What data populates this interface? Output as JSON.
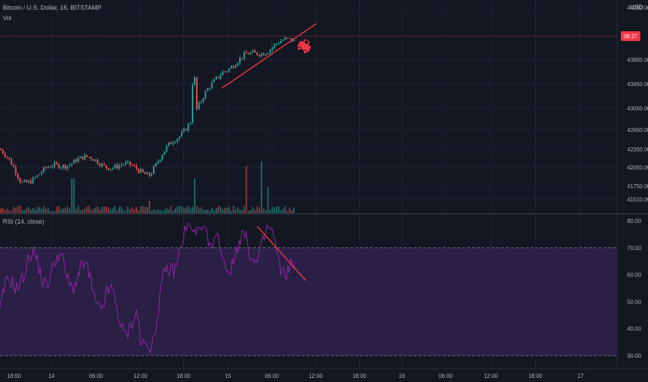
{
  "header": {
    "price_title": "Bitcoin / U.S. Dollar, 15, BITSTAMP",
    "vol_label": "Vol",
    "rsi_title": "RSI (14, close)",
    "currency": "USD"
  },
  "countdown_badge": "08:27",
  "colors": {
    "background": "#131722",
    "grid": "#1f2330",
    "up": "#26a69a",
    "down": "#ef5350",
    "rsi_line": "#9c27b0",
    "rsi_band": "#2a1f45",
    "trendline": "#f23645",
    "axis_text": "#b2b5be"
  },
  "icons": {
    "annotation": "red-car-icon"
  },
  "chart_data": [
    {
      "type": "candlestick",
      "title": "Bitcoin / U.S. Dollar, 15, BITSTAMP",
      "y_ticks": [
        "44250.00",
        "43850.00",
        "43450.00",
        "43050.00",
        "42650.00",
        "42350.00",
        "42050.00",
        "41750.00",
        "41510.00"
      ],
      "current_price_marker": "08:27",
      "x_ticks": [
        "18:00",
        "14",
        "06:00",
        "12:00",
        "18:00",
        "15",
        "06:00",
        "12:00",
        "18:00",
        "16",
        "06:00",
        "12:00",
        "18:00",
        "17"
      ],
      "approx_close_path": [
        {
          "t": "18:00",
          "close": 42350
        },
        {
          "t": "14",
          "close": 41820
        },
        {
          "t": "06:00",
          "close": 42200
        },
        {
          "t": "12:00",
          "close": 41980
        },
        {
          "t": "18:00",
          "close": 42600
        },
        {
          "t": "15",
          "close": 43700
        },
        {
          "t": "06:00",
          "close": 44100
        },
        {
          "t": "08:27",
          "close": 44150
        }
      ],
      "annotation": "ascending trendline under price"
    },
    {
      "type": "bar",
      "title": "Vol",
      "note": "volume histogram, colored by candle direction"
    },
    {
      "type": "line",
      "title": "RSI (14, close)",
      "y_ticks": [
        "80.00",
        "70.00",
        "60.00",
        "50.00",
        "40.00",
        "30.00"
      ],
      "ylim": [
        28,
        81
      ],
      "bands": [
        30,
        70
      ],
      "approx_points": [
        {
          "t": "18:00",
          "rsi": 46
        },
        {
          "t": "14",
          "rsi": 63
        },
        {
          "t": "06:00",
          "rsi": 61
        },
        {
          "t": "12:00",
          "rsi": 35
        },
        {
          "t": "18:00",
          "rsi": 75
        },
        {
          "t": "15",
          "rsi": 67
        },
        {
          "t": "06:00",
          "rsi": 72
        },
        {
          "t": "08:27",
          "rsi": 57
        }
      ],
      "annotation": "descending trendline on RSI highs"
    }
  ]
}
